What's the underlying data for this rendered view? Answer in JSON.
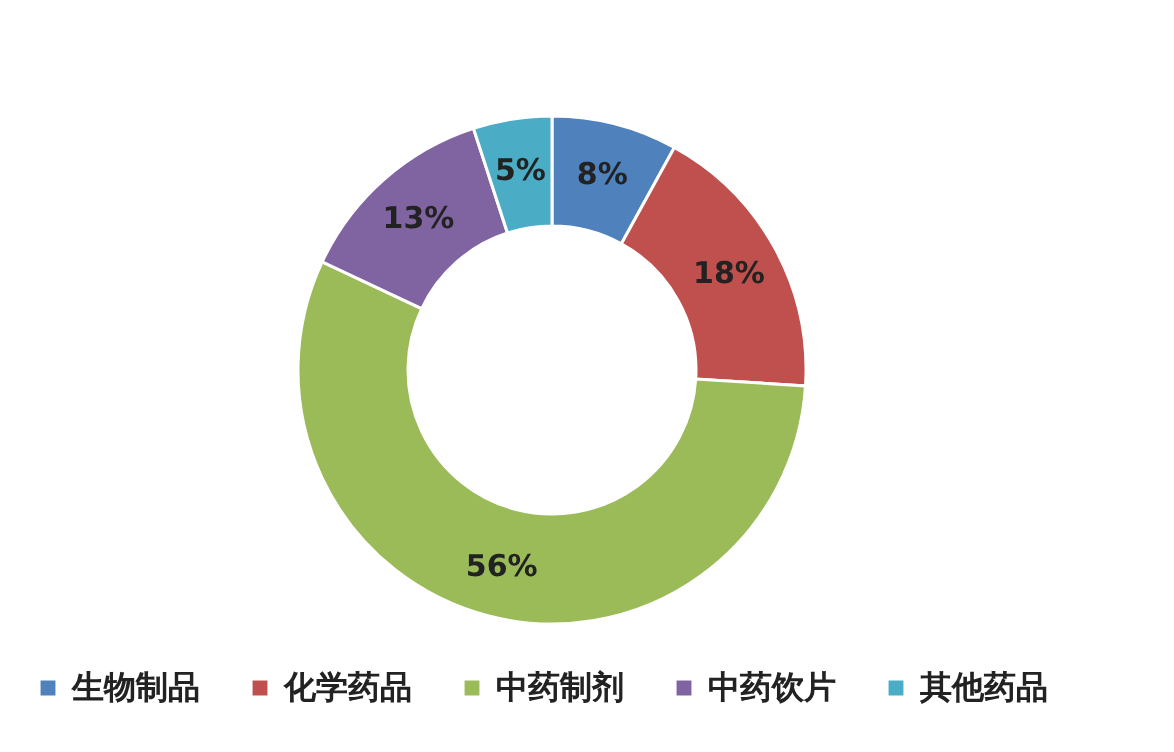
{
  "chart_data": {
    "type": "donut",
    "categories": [
      "生物制品",
      "化学药品",
      "中药制剂",
      "中药饮片",
      "其他药品"
    ],
    "values": [
      8,
      18,
      56,
      13,
      5
    ],
    "colors": [
      "#4f81bd",
      "#c0504d",
      "#9bbb59",
      "#8064a2",
      "#4bacc6"
    ],
    "value_labels": [
      "8%",
      "18%",
      "56%",
      "13%",
      "5%"
    ],
    "legend": "bottom"
  }
}
